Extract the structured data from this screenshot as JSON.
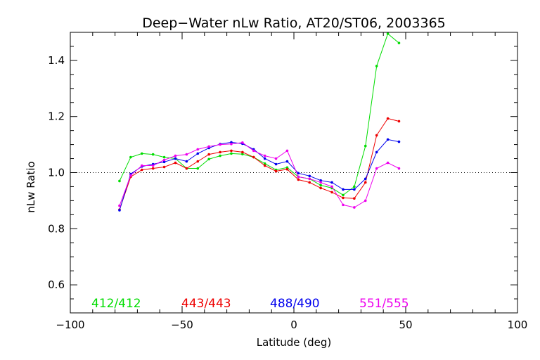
{
  "chart_data": {
    "type": "line",
    "title": "Deep−Water nLw Ratio, AT20/ST06, 2003365",
    "xlabel": "Latitude (deg)",
    "ylabel": "nLw Ratio",
    "xlim": [
      -100,
      100
    ],
    "ylim": [
      0.5,
      1.5
    ],
    "xticks": [
      -100,
      -50,
      0,
      50,
      100
    ],
    "xtick_labels": [
      "−100",
      "−50",
      "0",
      "50",
      "100"
    ],
    "yticks": [
      0.6,
      0.8,
      1.0,
      1.2,
      1.4
    ],
    "ytick_labels": [
      "0.6",
      "0.8",
      "1.0",
      "1.2",
      "1.4"
    ],
    "reference_line": {
      "y": 1.0,
      "style": "dotted"
    },
    "legend_placement": "bottom",
    "x": [
      -78,
      -73,
      -68,
      -63,
      -58,
      -53,
      -48,
      -43,
      -38,
      -33,
      -28,
      -23,
      -18,
      -13,
      -8,
      -3,
      2,
      7,
      12,
      17,
      22,
      27,
      32,
      37,
      42,
      47
    ],
    "series": [
      {
        "name": "412/412",
        "color": "#00dd00",
        "values": [
          0.97,
          1.055,
          1.068,
          1.065,
          1.055,
          1.05,
          1.015,
          1.015,
          1.048,
          1.06,
          1.068,
          1.066,
          1.055,
          1.032,
          1.01,
          1.018,
          0.985,
          0.978,
          0.955,
          0.945,
          0.92,
          0.95,
          1.095,
          1.38,
          1.495,
          1.462
        ]
      },
      {
        "name": "443/443",
        "color": "#ee0000",
        "values": [
          0.868,
          0.985,
          1.01,
          1.015,
          1.02,
          1.035,
          1.015,
          1.04,
          1.065,
          1.073,
          1.078,
          1.073,
          1.055,
          1.025,
          1.005,
          1.012,
          0.975,
          0.965,
          0.945,
          0.93,
          0.91,
          0.908,
          0.965,
          1.133,
          1.193,
          1.183
        ]
      },
      {
        "name": "488/490",
        "color": "#0000ee",
        "values": [
          0.866,
          0.995,
          1.022,
          1.03,
          1.038,
          1.05,
          1.04,
          1.068,
          1.088,
          1.102,
          1.108,
          1.103,
          1.083,
          1.05,
          1.03,
          1.04,
          0.998,
          0.988,
          0.972,
          0.965,
          0.94,
          0.94,
          0.978,
          1.073,
          1.118,
          1.11
        ]
      },
      {
        "name": "551/555",
        "color": "#ee00ee",
        "values": [
          0.882,
          0.99,
          1.025,
          1.025,
          1.045,
          1.06,
          1.065,
          1.083,
          1.093,
          1.1,
          1.102,
          1.107,
          1.078,
          1.06,
          1.05,
          1.078,
          0.985,
          0.978,
          0.965,
          0.95,
          0.885,
          0.876,
          0.9,
          1.015,
          1.035,
          1.015
        ]
      }
    ]
  }
}
